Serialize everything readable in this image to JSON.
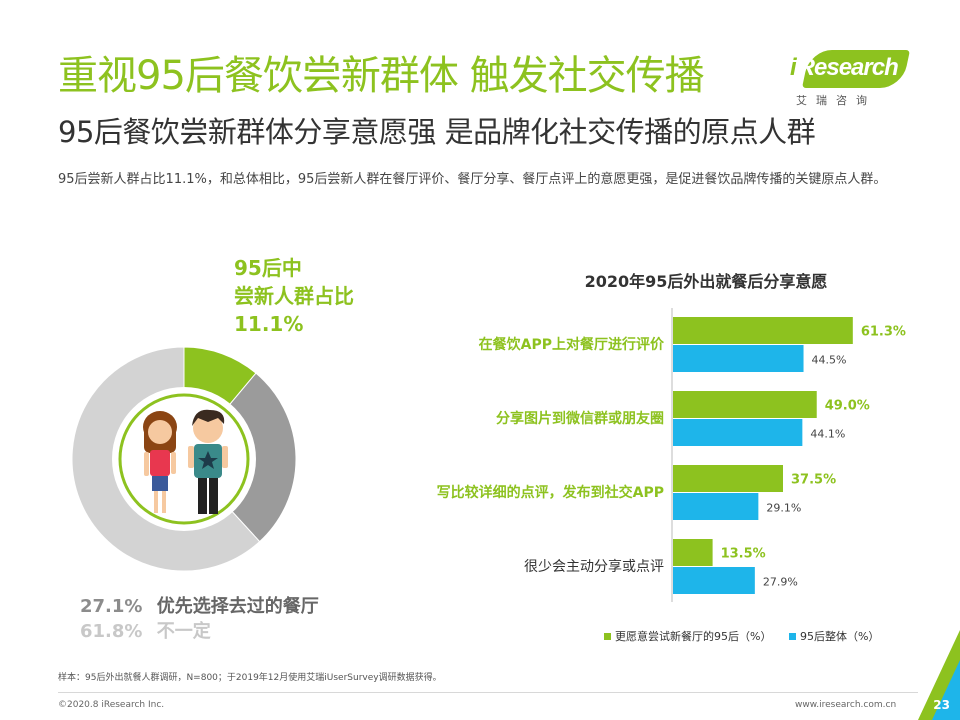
{
  "header": {
    "title": "重视95后餐饮尝新群体 触发社交传播",
    "subtitle": "95后餐饮尝新群体分享意愿强 是品牌化社交传播的原点人群",
    "description": "95后尝新人群占比11.1%，和总体相比，95后尝新人群在餐厅评价、餐厅分享、餐厅点评上的意愿更强，是促进餐饮品牌传播的关键原点人群。"
  },
  "logo": {
    "brand_i": "i",
    "brand_rest": "Research",
    "sub": "艾瑞咨询"
  },
  "colors": {
    "green": "#8dc21f",
    "blue": "#1eb5ea",
    "gray_dark": "#9b9b9b",
    "gray_light": "#d3d3d3"
  },
  "chart_data": [
    {
      "type": "pie",
      "title": "",
      "slices": [
        {
          "label": "95后中尝新人群占比",
          "value": 11.1,
          "value_label": "11.1%",
          "color": "#8dc21f"
        },
        {
          "label": "优先选择去过的餐厅",
          "value": 27.1,
          "value_label": "27.1%",
          "color": "#9b9b9b"
        },
        {
          "label": "不一定",
          "value": 61.8,
          "value_label": "61.8%",
          "color": "#d3d3d3"
        }
      ],
      "callout_lines": [
        "95后中",
        "尝新人群占比",
        "11.1%"
      ]
    },
    {
      "type": "bar",
      "orientation": "horizontal",
      "title": "2020年95后外出就餐后分享意愿",
      "categories": [
        "在餐饮APP上对餐厅进行评价",
        "分享图片到微信群或朋友圈",
        "写比较详细的点评，发布到社交APP",
        "很少会主动分享或点评"
      ],
      "series": [
        {
          "name": "更愿意尝试新餐厅的95后（%）",
          "values": [
            61.3,
            49.0,
            37.5,
            13.5
          ],
          "labels": [
            "61.3%",
            "49.0%",
            "37.5%",
            "13.5%"
          ],
          "color": "#8dc21f"
        },
        {
          "name": "95后整体（%）",
          "values": [
            44.5,
            44.1,
            29.1,
            27.9
          ],
          "labels": [
            "44.5%",
            "44.1%",
            "29.1%",
            "27.9%"
          ],
          "color": "#1eb5ea"
        }
      ],
      "xlim": [
        0,
        75
      ],
      "legend": "bottom"
    }
  ],
  "footer": {
    "note": "样本：95后外出就餐人群调研，N=800；于2019年12月使用艾瑞iUserSurvey调研数据获得。",
    "copyright": "©2020.8  iResearch Inc.",
    "url": "www.iresearch.com.cn",
    "page": "23"
  }
}
